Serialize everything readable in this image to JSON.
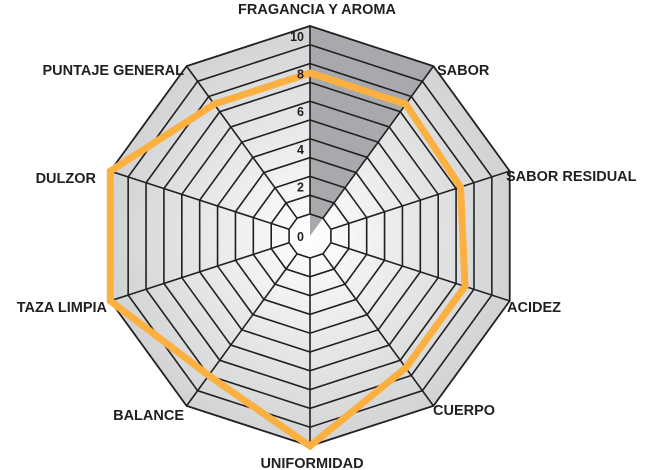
{
  "chart_data": {
    "type": "radar",
    "axes": [
      "FRAGANCIA Y AROMA",
      "SABOR",
      "SABOR RESIDUAL",
      "ACIDEZ",
      "CUERPO",
      "UNIFORMIDAD",
      "BALANCE",
      "TAZA LIMPIA",
      "DULZOR",
      "PUNTAJE GENERAL"
    ],
    "series": [
      {
        "values": [
          7.5,
          7.5,
          7.25,
          7.5,
          7.5,
          10,
          8,
          10,
          10,
          7.5
        ],
        "color": "#fbb040"
      }
    ],
    "highlight_axis": "FRAGANCIA Y AROMA",
    "highlight_color": "#a7a9ac",
    "range": [
      0,
      10
    ],
    "grid_levels": 10,
    "tick_labels": [
      "0",
      "2",
      "4",
      "6",
      "8",
      "10"
    ],
    "tick_values": [
      0,
      2,
      4,
      6,
      8,
      10
    ],
    "grid_color": "#231f20",
    "background_fill": "#d1d3d4"
  }
}
